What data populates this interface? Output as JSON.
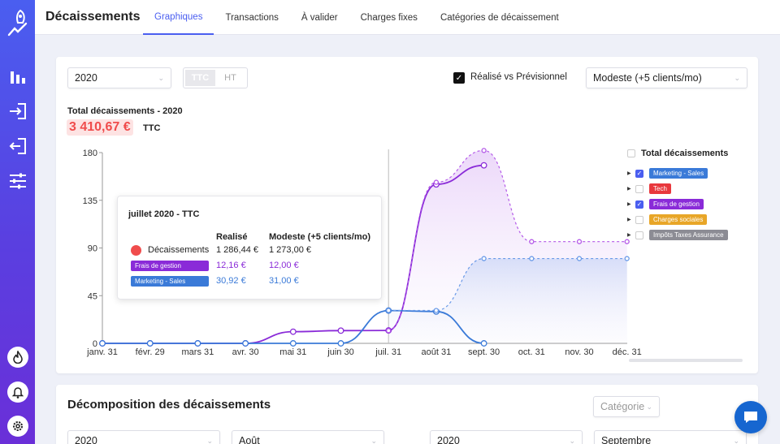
{
  "sidebar": {
    "items": [
      {
        "icon": "chart-bar-icon"
      },
      {
        "icon": "login-icon"
      },
      {
        "icon": "logout-icon"
      },
      {
        "icon": "sliders-icon"
      }
    ],
    "bottom": [
      {
        "icon": "flame-icon"
      },
      {
        "icon": "bell-icon"
      },
      {
        "icon": "gear-icon"
      }
    ],
    "accent": "#4a5ef0"
  },
  "header": {
    "title": "Décaissements",
    "tabs": [
      {
        "label": "Graphiques",
        "active": true
      },
      {
        "label": "Transactions"
      },
      {
        "label": "À valider"
      },
      {
        "label": "Charges fixes"
      },
      {
        "label": "Catégories de décaissement"
      }
    ]
  },
  "filters": {
    "year": "2020",
    "ttc": "TTC",
    "ht": "HT",
    "realise_label": "Réalisé vs Prévisionnel",
    "realise_checked": true,
    "scenario": "Modeste (+5 clients/mo)"
  },
  "total": {
    "label": "Total décaissements - 2020",
    "value": "3 410,67 €",
    "unit": "TTC"
  },
  "chart_data": {
    "type": "line",
    "categories": [
      "janv. 31",
      "févr. 29",
      "mars 31",
      "avr. 30",
      "mai 31",
      "juin 30",
      "juil. 31",
      "août 31",
      "sept. 30",
      "oct. 31",
      "nov. 30",
      "déc. 31"
    ],
    "ylim": [
      0,
      180
    ],
    "yticks": [
      "0",
      "45",
      "90",
      "135",
      "180"
    ],
    "grid": false,
    "legend": "right",
    "series": [
      {
        "name": "Frais de gestion",
        "kind": "realise",
        "color": "#8a2bd8",
        "values": [
          0,
          0,
          0,
          0,
          11,
          12,
          12.16,
          150,
          168,
          null,
          null,
          null
        ]
      },
      {
        "name": "Frais de gestion",
        "kind": "previsionnel",
        "color": "#b45ae8",
        "values": [
          null,
          null,
          null,
          null,
          null,
          null,
          12,
          152,
          182,
          96,
          96,
          96
        ]
      },
      {
        "name": "Marketing - Sales",
        "kind": "realise",
        "color": "#3a7ad8",
        "values": [
          0,
          0,
          0,
          0,
          0,
          0,
          30.92,
          30,
          0,
          null,
          null,
          null
        ]
      },
      {
        "name": "Marketing - Sales",
        "kind": "previsionnel",
        "color": "#6a9ae8",
        "values": [
          null,
          null,
          null,
          null,
          null,
          null,
          31,
          31,
          80,
          80,
          80,
          80
        ]
      }
    ]
  },
  "legend": {
    "title": "Total décaissements",
    "items": [
      {
        "label": "Marketing - Sales",
        "color": "#3a7ad8",
        "checked": true
      },
      {
        "label": "Tech",
        "color": "#e8383d",
        "checked": false
      },
      {
        "label": "Frais de gestion",
        "color": "#8a2bd8",
        "checked": true
      },
      {
        "label": "Charges sociales",
        "color": "#e8a628",
        "checked": false
      },
      {
        "label": "Impôts Taxes Assurance",
        "color": "#8c8c94",
        "checked": false
      }
    ]
  },
  "tooltip": {
    "title": "juillet 2020 - TTC",
    "col1": "Realisé",
    "col2": "Modeste (+5 clients/mo)",
    "rows": [
      {
        "label": "Décaissements",
        "realise": "1 286,44 €",
        "prev": "1 273,00 €",
        "color": "#222"
      },
      {
        "label": "Frais de gestion",
        "realise": "12,16 €",
        "prev": "12,00 €",
        "color": "#8a2bd8"
      },
      {
        "label": "Marketing - Sales",
        "realise": "30,92 €",
        "prev": "31,00 €",
        "color": "#3a7ad8"
      }
    ]
  },
  "decomposition": {
    "title": "Décomposition des décaissements",
    "category_placeholder": "Catégorie",
    "year1": "2020",
    "month1": "Août",
    "year2": "2020",
    "month2": "Septembre"
  }
}
